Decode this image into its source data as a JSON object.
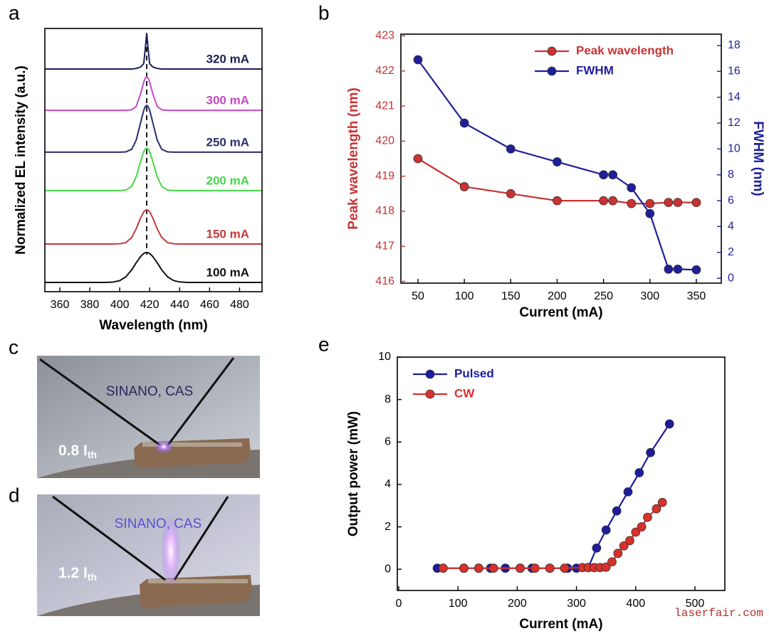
{
  "chart_data": [
    {
      "type": "line",
      "panel_label": "a",
      "xlabel": "Wavelength (nm)",
      "ylabel": "Normalized EL intensity (a.u.)",
      "x": [
        350,
        360,
        370,
        380,
        390,
        395,
        400,
        404,
        408,
        411,
        414,
        416,
        417,
        418,
        419,
        420,
        422,
        425,
        428,
        432,
        436,
        440,
        445,
        450,
        460,
        470,
        480,
        490,
        495
      ],
      "series": [
        {
          "name": "100 mA",
          "color": "#111111",
          "values": [
            0.35,
            0.35,
            0.35,
            0.35,
            0.35,
            0.36,
            0.42,
            0.56,
            0.83,
            1.1,
            1.34,
            1.45,
            1.48,
            1.49,
            1.48,
            1.45,
            1.34,
            1.1,
            0.83,
            0.56,
            0.42,
            0.37,
            0.35,
            0.35,
            0.35,
            0.35,
            0.35,
            0.35,
            0.35
          ]
        },
        {
          "name": "150 mA",
          "color": "#c43a3a",
          "values": [
            1.81,
            1.81,
            1.81,
            1.81,
            1.81,
            1.81,
            1.82,
            1.86,
            2.06,
            2.39,
            2.81,
            3.03,
            3.09,
            3.11,
            3.09,
            3.03,
            2.81,
            2.39,
            2.06,
            1.86,
            1.82,
            1.81,
            1.81,
            1.81,
            1.81,
            1.81,
            1.81,
            1.81,
            1.81
          ]
        },
        {
          "name": "200 mA",
          "color": "#45d845",
          "values": [
            3.84,
            3.84,
            3.84,
            3.84,
            3.84,
            3.84,
            3.84,
            3.86,
            4.0,
            4.37,
            4.96,
            5.32,
            5.42,
            5.46,
            5.42,
            5.32,
            4.96,
            4.37,
            4.0,
            3.86,
            3.84,
            3.84,
            3.84,
            3.84,
            3.84,
            3.84,
            3.84,
            3.84,
            3.84
          ]
        },
        {
          "name": "250 mA",
          "color": "#2b2d6e",
          "values": [
            5.3,
            5.3,
            5.3,
            5.3,
            5.3,
            5.3,
            5.3,
            5.31,
            5.41,
            5.76,
            6.44,
            6.89,
            7.03,
            7.08,
            7.03,
            6.89,
            6.44,
            5.76,
            5.41,
            5.31,
            5.3,
            5.3,
            5.3,
            5.3,
            5.3,
            5.3,
            5.3,
            5.3,
            5.3
          ]
        },
        {
          "name": "300 mA",
          "color": "#c44ac8",
          "values": [
            6.89,
            6.89,
            6.89,
            6.89,
            6.89,
            6.89,
            6.89,
            6.89,
            6.91,
            7.04,
            7.53,
            7.96,
            8.11,
            8.16,
            8.11,
            7.96,
            7.53,
            7.04,
            6.91,
            6.89,
            6.89,
            6.89,
            6.89,
            6.89,
            6.89,
            6.89,
            6.89,
            6.89,
            6.89
          ]
        },
        {
          "name": "320 mA",
          "color": "#1b1d55",
          "values": [
            8.46,
            8.46,
            8.46,
            8.46,
            8.46,
            8.46,
            8.46,
            8.46,
            8.46,
            8.48,
            8.54,
            8.66,
            9.2,
            9.81,
            9.2,
            8.66,
            8.54,
            8.48,
            8.46,
            8.46,
            8.46,
            8.46,
            8.46,
            8.46,
            8.46,
            8.46,
            8.46,
            8.46,
            8.46
          ]
        }
      ],
      "xlim": [
        350,
        495
      ],
      "xticks": [
        360,
        380,
        400,
        420,
        440,
        460,
        480
      ],
      "ylim": [
        0,
        10
      ],
      "dashed_line_x": 418,
      "legend": "inline",
      "markers": false
    },
    {
      "type": "line",
      "panel_label": "b",
      "xlabel": "Current (mA)",
      "ylabel": "Peak wavelength (nm)",
      "y2label": "FWHM (nm)",
      "x": [
        50,
        100,
        150,
        200,
        250,
        260,
        280,
        300,
        320,
        330,
        350
      ],
      "series": [
        {
          "name": "Peak wavelength",
          "color": "#c83232",
          "values": [
            419.5,
            418.7,
            418.5,
            418.3,
            418.3,
            418.3,
            418.22,
            418.22,
            418.25,
            418.25,
            418.25
          ]
        },
        {
          "name": "FWHM",
          "color": "#1f1f9a",
          "axis": "y2",
          "values": [
            16.9,
            12,
            10,
            9,
            8,
            8,
            7,
            5,
            0.7,
            0.7,
            0.65
          ]
        }
      ],
      "xlim": [
        31.6,
        376.9
      ],
      "xticks": [
        50,
        100,
        150,
        200,
        250,
        300,
        350
      ],
      "ylim": [
        415.95,
        423.05
      ],
      "yticks": [
        416,
        417,
        418,
        419,
        420,
        421,
        422,
        423
      ],
      "y2lim": [
        -0.38,
        18.88
      ],
      "y2ticks": [
        0,
        2,
        4,
        6,
        8,
        10,
        12,
        14,
        16,
        18
      ],
      "legend": "upper right",
      "markers": true
    },
    {
      "type": "line",
      "panel_label": "e",
      "xlabel": "Current (mA)",
      "ylabel": "Output power (mW)",
      "series": [
        {
          "name": "Pulsed",
          "color": "#1c1c9c",
          "x": [
            65,
            110,
            135,
            155,
            180,
            205,
            225,
            255,
            285,
            300,
            320,
            334,
            350,
            368,
            387,
            406,
            425,
            457
          ],
          "values": [
            0.05,
            0.05,
            0.05,
            0.05,
            0.05,
            0.05,
            0.05,
            0.05,
            0.05,
            0.05,
            0.08,
            1.0,
            1.85,
            2.75,
            3.65,
            4.55,
            5.5,
            6.85
          ]
        },
        {
          "name": "CW",
          "color": "#d8302a",
          "x": [
            75,
            110,
            135,
            160,
            205,
            230,
            255,
            280,
            310,
            320,
            330,
            340,
            350,
            360,
            370,
            380,
            390,
            400,
            410,
            420,
            435,
            445
          ],
          "values": [
            0.05,
            0.05,
            0.05,
            0.05,
            0.05,
            0.05,
            0.05,
            0.05,
            0.08,
            0.08,
            0.08,
            0.08,
            0.1,
            0.35,
            0.75,
            1.1,
            1.35,
            1.75,
            2.0,
            2.45,
            2.85,
            3.15
          ]
        }
      ],
      "xlim": [
        -2.4,
        550.5
      ],
      "xticks": [
        0,
        100,
        200,
        300,
        400,
        500
      ],
      "ylim": [
        -1,
        10
      ],
      "yticks": [
        0,
        2,
        4,
        6,
        8,
        10
      ],
      "legend": "upper left",
      "markers": true
    }
  ],
  "photos": [
    {
      "panel_label": "c",
      "caption": "SINANO, CAS",
      "level": "0.8 I",
      "level_sub": "th"
    },
    {
      "panel_label": "d",
      "caption": "SINANO, CAS",
      "level": "1.2 I",
      "level_sub": "th"
    }
  ],
  "watermark": "laserfair.com"
}
